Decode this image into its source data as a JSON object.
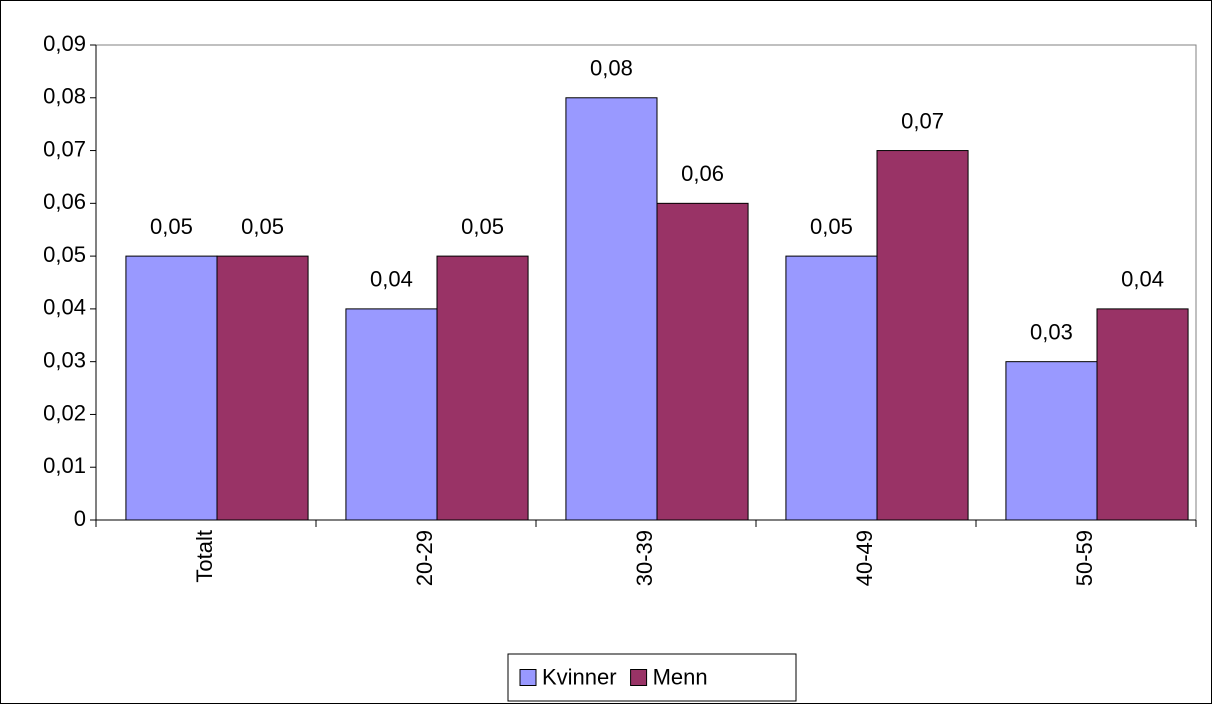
{
  "chart_data": {
    "type": "bar",
    "categories": [
      "Totalt",
      "20-29",
      "30-39",
      "40-49",
      "50-59"
    ],
    "series": [
      {
        "name": "Kvinner",
        "color": "#9999ff",
        "values": [
          0.05,
          0.04,
          0.08,
          0.05,
          0.03
        ],
        "value_labels": [
          "0,05",
          "0,04",
          "0,08",
          "0,05",
          "0,03"
        ]
      },
      {
        "name": "Menn",
        "color": "#993366",
        "values": [
          0.05,
          0.05,
          0.06,
          0.07,
          0.04
        ],
        "value_labels": [
          "0,05",
          "0,05",
          "0,06",
          "0,07",
          "0,04"
        ]
      }
    ],
    "ylim": [
      0,
      0.09
    ],
    "yticks": [
      0,
      {
        "value": 0.01,
        "label": "0,01"
      },
      {
        "value": 0.02,
        "label": "0,02"
      },
      {
        "value": 0.03,
        "label": "0,03"
      },
      {
        "value": 0.04,
        "label": "0,04"
      },
      {
        "value": 0.05,
        "label": "0,05"
      },
      {
        "value": 0.06,
        "label": "0,06"
      },
      {
        "value": 0.07,
        "label": "0,07"
      },
      {
        "value": 0.08,
        "label": "0,08"
      },
      {
        "value": 0.09,
        "label": "0,09"
      }
    ],
    "legend": "bottom"
  }
}
